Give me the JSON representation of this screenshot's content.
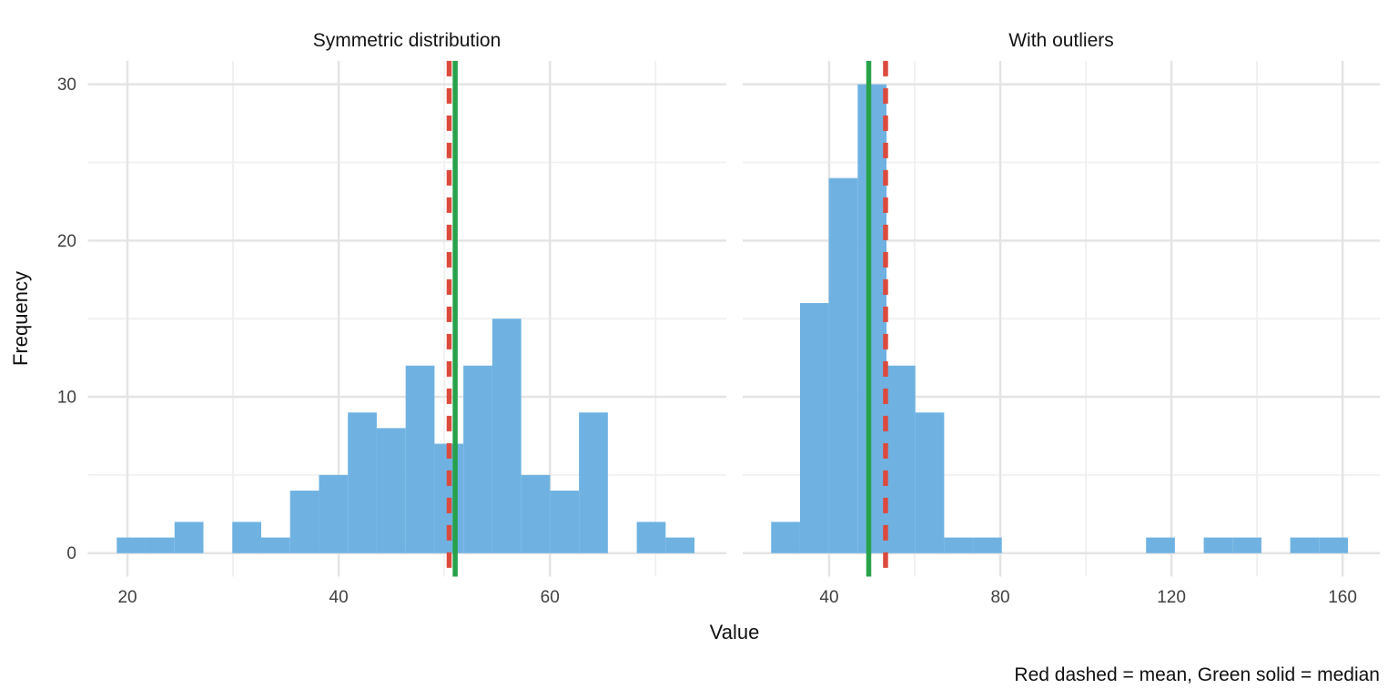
{
  "chart_data": {
    "type": "bar",
    "subtype": "faceted-histogram",
    "xlabel": "Value",
    "ylabel": "Frequency",
    "caption": "Red dashed = mean, Green solid = median",
    "y_axis": {
      "range": [
        -1.5,
        31.5
      ],
      "major_breaks": [
        0,
        10,
        20,
        30
      ],
      "minor_breaks": [
        5,
        15,
        25
      ],
      "tick_labels": [
        "0",
        "10",
        "20",
        "30"
      ]
    },
    "panels": [
      {
        "title": "Symmetric distribution",
        "x_range": [
          16.25,
          76.7
        ],
        "x_major_breaks": [
          20,
          40,
          60
        ],
        "x_minor_breaks": [
          30,
          50,
          70
        ],
        "x_tick_labels": [
          "20",
          "40",
          "60"
        ],
        "bins": {
          "start": 18.99,
          "width": 2.735,
          "counts": [
            1,
            1,
            2,
            0,
            2,
            1,
            4,
            5,
            9,
            8,
            12,
            7,
            12,
            15,
            5,
            4,
            9,
            0,
            2,
            1
          ]
        },
        "n": 100,
        "mean": 50.46,
        "median": 51.03
      },
      {
        "title": "With outliers",
        "x_range": [
          19.8,
          168.7
        ],
        "x_major_breaks": [
          40,
          80,
          120,
          160
        ],
        "x_minor_breaks": [
          60,
          100,
          140
        ],
        "x_tick_labels": [
          "40",
          "80",
          "120",
          "160"
        ],
        "bins": {
          "start": 26.45,
          "width": 6.74,
          "counts": [
            2,
            16,
            24,
            30,
            12,
            9,
            1,
            1,
            0,
            0,
            0,
            0,
            0,
            1,
            0,
            1,
            1,
            0,
            1,
            1
          ]
        },
        "n": 100,
        "mean": 53.19,
        "median": 49.26
      }
    ],
    "legend_note": {
      "mean_line": "red dashed",
      "median_line": "green solid"
    },
    "grid": "on",
    "colors": {
      "bar_fill": "#6FB2E2",
      "mean_line": "#DC4A3D",
      "median_line": "#27A24B",
      "grid_major": "#E4E4E4",
      "grid_minor": "#F0F0F0",
      "tick_label": "#404040",
      "title_text": "#141414",
      "axis_text": "#111111"
    }
  }
}
